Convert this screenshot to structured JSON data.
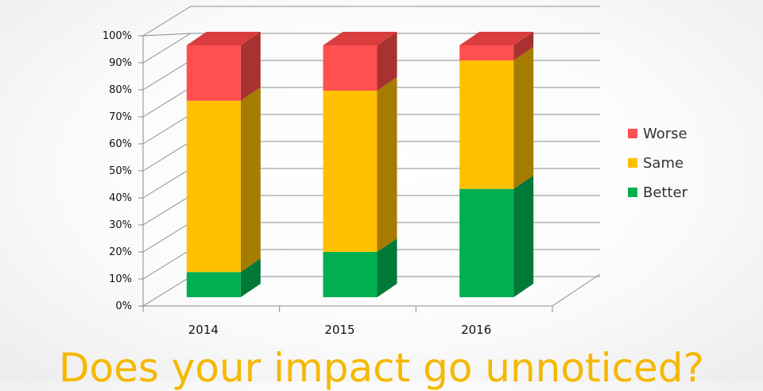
{
  "caption": "Does your impact go unnoticed?",
  "chart_data": {
    "type": "bar",
    "stacked": true,
    "three_d": true,
    "categories": [
      "2014",
      "2015",
      "2016"
    ],
    "y_ticks": [
      "0%",
      "10%",
      "20%",
      "30%",
      "40%",
      "50%",
      "60%",
      "70%",
      "80%",
      "90%",
      "100%"
    ],
    "ylim": [
      0,
      100
    ],
    "grid": true,
    "legend_position": "right",
    "series": [
      {
        "name": "Better",
        "values": [
          10,
          18,
          43
        ],
        "color": "#00b050",
        "side_color": "#007838",
        "top_color": "#2ec56f"
      },
      {
        "name": "Same",
        "values": [
          68,
          64,
          51
        ],
        "color": "#ffc000",
        "side_color": "#a67c00",
        "top_color": "#ffd24d"
      },
      {
        "name": "Worse",
        "values": [
          22,
          18,
          6
        ],
        "color": "#ff5050",
        "side_color": "#a83232",
        "top_color": "#d93d3d"
      }
    ],
    "legend_order": [
      "Worse",
      "Same",
      "Better"
    ]
  }
}
